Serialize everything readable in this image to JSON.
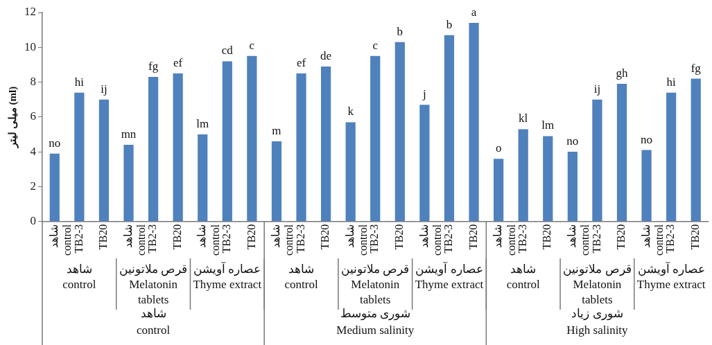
{
  "chart_data": {
    "type": "bar",
    "ylabel": "میلی لیتر (ml)",
    "categories": [
      "شاهد\ncontrol",
      "TB2-3",
      "TB20",
      "شاهد\ncontrol",
      "TB2-3",
      "TB20",
      "شاهد\ncontrol",
      "TB2-3",
      "TB20",
      "شاهد\ncontrol",
      "TB2-3",
      "TB20",
      "شاهد\ncontrol",
      "TB2-3",
      "TB20",
      "شاهد\ncontrol",
      "TB2-3",
      "TB20",
      "شاهد\ncontrol",
      "TB2-3",
      "TB20",
      "شاهد\ncontrol",
      "TB2-3",
      "TB20",
      "شاهد\ncontrol",
      "TB2-3",
      "TB20"
    ],
    "values": [
      3.9,
      7.4,
      7.0,
      4.4,
      8.3,
      8.5,
      5.0,
      9.2,
      9.5,
      4.6,
      8.5,
      8.9,
      5.7,
      9.5,
      10.3,
      6.7,
      10.7,
      11.4,
      3.6,
      5.3,
      4.9,
      4.0,
      7.0,
      7.9,
      4.1,
      7.4,
      8.2
    ],
    "value_labels": [
      "no",
      "hi",
      "ij",
      "mn",
      "fg",
      "ef",
      "lm",
      "cd",
      "c",
      "m",
      "ef",
      "de",
      "k",
      "c",
      "b",
      "j",
      "b",
      "a",
      "o",
      "kl",
      "lm",
      "no",
      "ij",
      "gh",
      "no",
      "hi",
      "fg"
    ],
    "color": "#4f81bd",
    "ylim": [
      0,
      12
    ],
    "yticks": [
      0,
      2,
      4,
      6,
      8,
      10,
      12
    ],
    "grid": false,
    "legend": false,
    "annotations": [
      "شاهد\ncontrol",
      "قرص ملاتونین\nMelatonin tablets",
      "عصاره آویشن\nThyme extract",
      "شاهد\ncontrol",
      "قرص ملاتونین\nMelatonin tablets",
      "عصاره آویشن\nThyme extract",
      "شاهد\ncontrol",
      "قرص ملاتونین\nMelatonin tablets",
      "عصاره آویشن\nThyme extract",
      "شاهد\ncontrol",
      "شوری متوسط\nMedium salinity",
      "شوری زیاد\nHigh salinity"
    ]
  }
}
